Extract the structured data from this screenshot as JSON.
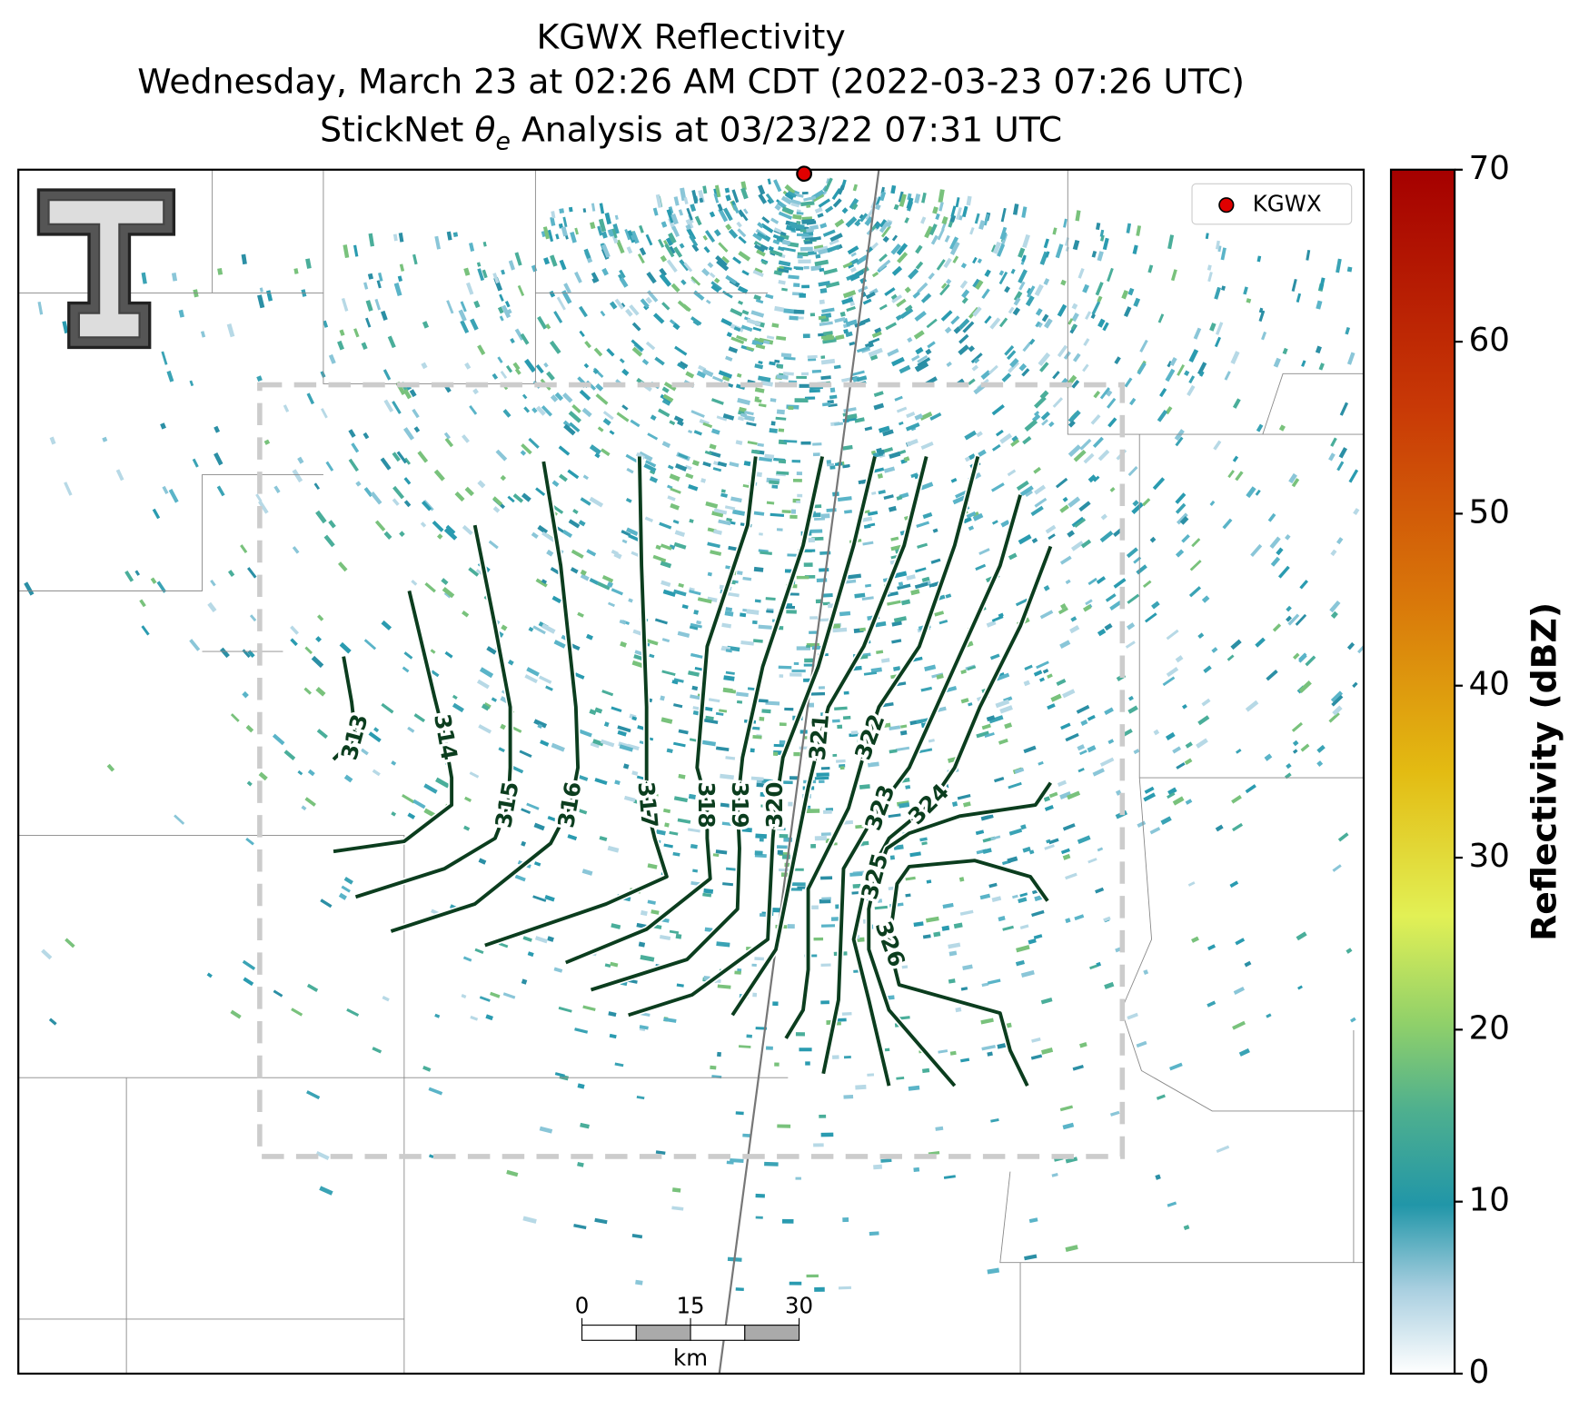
{
  "title": "KGWX Reflectivity",
  "subtitle": "Wednesday, March 23 at 02:26 AM CDT (2022-03-23 07:26 UTC)",
  "analysis_title": {
    "before": "StickNet ",
    "symbol": "θ",
    "subscript": "e",
    "after": " Analysis at 03/23/22 07:31 UTC"
  },
  "legend": {
    "label": "KGWX",
    "color": "#e00000"
  },
  "contours": {
    "color": "#0b3d1e",
    "levels": [
      313,
      314,
      315,
      316,
      317,
      318,
      319,
      320,
      321,
      322,
      323,
      324,
      325,
      326
    ]
  },
  "colorbar": {
    "label": "Reflectivity (dBZ)",
    "lim": [
      0,
      70
    ],
    "ticks": [
      0,
      10,
      20,
      30,
      40,
      50,
      60,
      70
    ]
  },
  "scale_bar": {
    "ticks": [
      0,
      15,
      30
    ],
    "unit": "km"
  }
}
